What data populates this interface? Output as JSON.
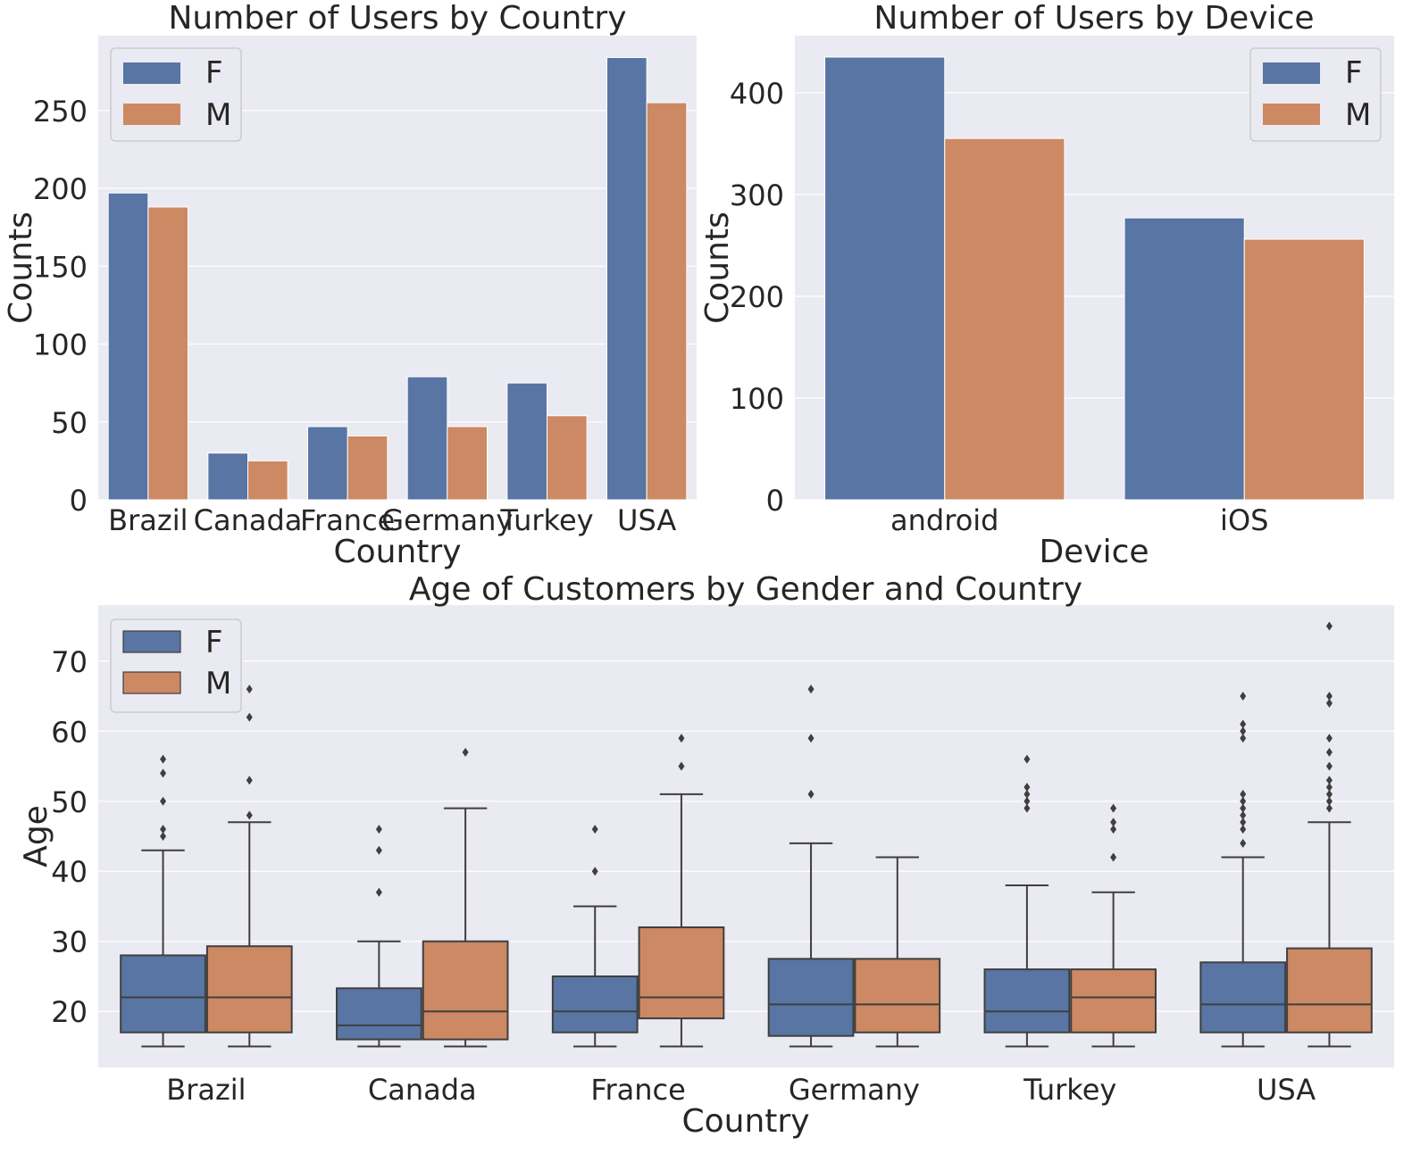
{
  "chart_data": [
    {
      "id": "country",
      "type": "bar",
      "title": "Number of Users by Country",
      "xlabel": "Country",
      "ylabel": "Counts",
      "categories": [
        "Brazil",
        "Canada",
        "France",
        "Germany",
        "Turkey",
        "USA"
      ],
      "series": [
        {
          "name": "F",
          "values": [
            197,
            30,
            47,
            79,
            75,
            284
          ]
        },
        {
          "name": "M",
          "values": [
            188,
            25,
            41,
            47,
            54,
            255
          ]
        }
      ],
      "ylim": [
        0,
        298
      ],
      "yticks": [
        0,
        50,
        100,
        150,
        200,
        250
      ],
      "grid": true,
      "legend": "top-left"
    },
    {
      "id": "device",
      "type": "bar",
      "title": "Number of Users by Device",
      "xlabel": "Device",
      "ylabel": "Counts",
      "categories": [
        "android",
        "iOS"
      ],
      "series": [
        {
          "name": "F",
          "values": [
            435,
            277
          ]
        },
        {
          "name": "M",
          "values": [
            355,
            256
          ]
        }
      ],
      "ylim": [
        0,
        456
      ],
      "yticks": [
        0,
        100,
        200,
        300,
        400
      ],
      "grid": true,
      "legend": "top-right"
    },
    {
      "id": "age",
      "type": "boxplot",
      "title": "Age of Customers by Gender and Country",
      "xlabel": "Country",
      "ylabel": "Age",
      "categories": [
        "Brazil",
        "Canada",
        "France",
        "Germany",
        "Turkey",
        "USA"
      ],
      "series": [
        {
          "name": "F",
          "boxes": [
            {
              "whislo": 15,
              "q1": 17,
              "med": 22,
              "q3": 28,
              "whishi": 43,
              "fliers": [
                45,
                46,
                50,
                54,
                56
              ]
            },
            {
              "whislo": 15,
              "q1": 16,
              "med": 18,
              "q3": 23.3,
              "whishi": 30,
              "fliers": [
                37,
                43,
                46
              ]
            },
            {
              "whislo": 15,
              "q1": 17,
              "med": 20,
              "q3": 25,
              "whishi": 35,
              "fliers": [
                40,
                46
              ]
            },
            {
              "whislo": 15,
              "q1": 16.5,
              "med": 21,
              "q3": 27.5,
              "whishi": 44,
              "fliers": [
                51,
                59,
                66
              ]
            },
            {
              "whislo": 15,
              "q1": 17,
              "med": 20,
              "q3": 26,
              "whishi": 38,
              "fliers": [
                49,
                50,
                51,
                52,
                56
              ]
            },
            {
              "whislo": 15,
              "q1": 17,
              "med": 21,
              "q3": 27,
              "whishi": 42,
              "fliers": [
                44,
                46,
                47,
                48,
                49,
                50,
                51,
                59,
                60,
                61,
                65
              ]
            }
          ]
        },
        {
          "name": "M",
          "boxes": [
            {
              "whislo": 15,
              "q1": 17,
              "med": 22,
              "q3": 29.3,
              "whishi": 47,
              "fliers": [
                48,
                53,
                62,
                66
              ]
            },
            {
              "whislo": 15,
              "q1": 16,
              "med": 20,
              "q3": 30,
              "whishi": 49,
              "fliers": [
                57
              ]
            },
            {
              "whislo": 15,
              "q1": 19,
              "med": 22,
              "q3": 32,
              "whishi": 51,
              "fliers": [
                55,
                59
              ]
            },
            {
              "whislo": 15,
              "q1": 17,
              "med": 21,
              "q3": 27.5,
              "whishi": 42,
              "fliers": []
            },
            {
              "whislo": 15,
              "q1": 17,
              "med": 22,
              "q3": 26,
              "whishi": 37,
              "fliers": [
                42,
                46,
                47,
                49
              ]
            },
            {
              "whislo": 15,
              "q1": 17,
              "med": 21,
              "q3": 29,
              "whishi": 47,
              "fliers": [
                49,
                50,
                51,
                52,
                53,
                55,
                57,
                59,
                64,
                65,
                75
              ]
            }
          ]
        }
      ],
      "ylim": [
        12,
        78
      ],
      "yticks": [
        20,
        30,
        40,
        50,
        60,
        70
      ],
      "grid": true,
      "legend": "top-left"
    }
  ],
  "colors": {
    "F": "#5875a4",
    "M": "#cc8963",
    "background": "#eaeaf2",
    "grid": "#ffffff",
    "line": "#3f3f3f"
  }
}
